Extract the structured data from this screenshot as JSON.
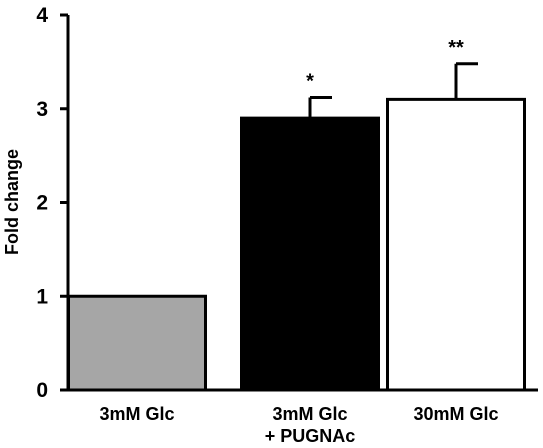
{
  "chart_data": {
    "type": "bar",
    "title": "",
    "xlabel": "",
    "ylabel": "Fold change",
    "ylim": [
      0,
      4
    ],
    "yticks": [
      0,
      1,
      2,
      3,
      4
    ],
    "grid": false,
    "categories": [
      [
        "3mM Glc"
      ],
      [
        "3mM Glc",
        "+ PUGNAc"
      ],
      [
        "30mM Glc"
      ]
    ],
    "values": [
      1.0,
      2.9,
      3.1
    ],
    "errors": [
      0,
      0.22,
      0.38
    ],
    "significance": [
      "",
      "*",
      "**"
    ],
    "colors": [
      "#a6a6a6",
      "#000000",
      "#ffffff"
    ]
  }
}
